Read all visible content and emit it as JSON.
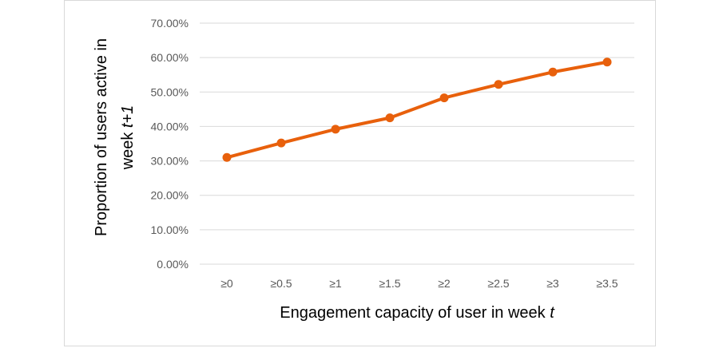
{
  "chart_data": {
    "type": "line",
    "categories": [
      "≥0",
      "≥0.5",
      "≥1",
      "≥1.5",
      "≥2",
      "≥2.5",
      "≥3",
      "≥3.5"
    ],
    "series": [
      {
        "name": "Proportion of users active in week t+1",
        "values": [
          0.31,
          0.352,
          0.392,
          0.425,
          0.483,
          0.522,
          0.558,
          0.587
        ]
      }
    ],
    "ylim": [
      0,
      0.7
    ],
    "yticks": [
      "0.00%",
      "10.00%",
      "20.00%",
      "30.00%",
      "40.00%",
      "50.00%",
      "60.00%",
      "70.00%"
    ],
    "xlabel": {
      "text": "Engagement capacity of user in week ",
      "var": "t"
    },
    "ylabel": {
      "line1": "Proportion of users active in",
      "line2_text": "week ",
      "line2_var": "t+1"
    },
    "grid": true,
    "color": "#E8600C"
  }
}
